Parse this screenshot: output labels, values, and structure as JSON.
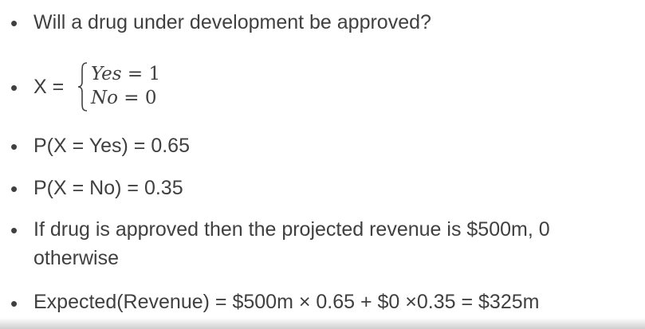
{
  "slide": {
    "bullets": [
      {
        "text": "Will a drug under development be approved?"
      },
      {
        "lhs": "X =",
        "cases": [
          {
            "var": "Yes",
            "rel": " = 1"
          },
          {
            "var": "No",
            "rel": " = 0"
          }
        ]
      },
      {
        "text": "P(X = Yes) = 0.65"
      },
      {
        "text": "P(X = No) = 0.35"
      },
      {
        "text": "If drug is approved then the projected revenue is $500m, 0 otherwise"
      },
      {
        "text": "Expected(Revenue) = $500m × 0.65 + $0 ×0.35 = $325m"
      }
    ],
    "bullet_glyph": "•",
    "colors": {
      "text": "#404040",
      "background": "#ffffff"
    }
  }
}
